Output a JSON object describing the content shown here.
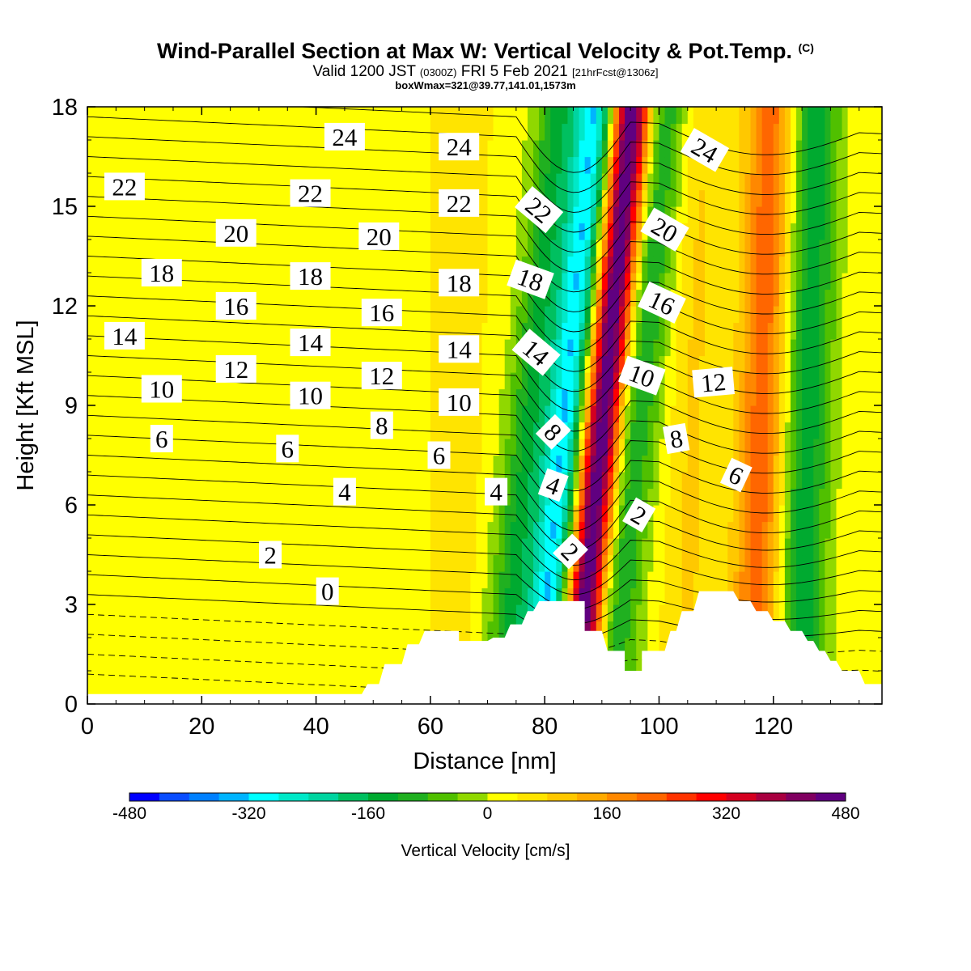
{
  "header": {
    "title_main": "Wind-Parallel Section at Max W: Vertical Velocity & Pot.Temp.",
    "title_mark": "(C)",
    "valid_prefix": "Valid 1200 JST",
    "valid_utc": "(0300Z)",
    "valid_date": "FRI 5 Feb 2021",
    "valid_fcst": "[21hrFcst@1306z]",
    "box_info": "boxWmax=321@39.77,141.01,1573m"
  },
  "chart_data": {
    "type": "heatmap",
    "xlabel": "Distance [nm]",
    "ylabel": "Height [Kft MSL]",
    "xlim": [
      0,
      139
    ],
    "ylim": [
      0,
      18
    ],
    "x_ticks": [
      0,
      20,
      40,
      60,
      80,
      100,
      120
    ],
    "y_ticks": [
      0,
      3,
      6,
      9,
      12,
      15,
      18
    ],
    "colorbar": {
      "label": "Vertical Velocity [cm/s]",
      "min": -480,
      "max": 480,
      "step": 40,
      "tick_values": [
        -480,
        -320,
        -160,
        0,
        160,
        320,
        480
      ],
      "tick_labels": [
        "-480",
        "-320",
        "-160",
        "0",
        "160",
        "320",
        "480"
      ],
      "colors": [
        "#0000ff",
        "#0a4dff",
        "#0080ff",
        "#00b4ff",
        "#00ffff",
        "#00e8c8",
        "#00d4a0",
        "#00c060",
        "#00aa30",
        "#20b020",
        "#50c000",
        "#90d800",
        "#ffff00",
        "#ffe400",
        "#ffc800",
        "#ffaa00",
        "#ff8800",
        "#ff6600",
        "#ff3300",
        "#ff0000",
        "#d40020",
        "#a80040",
        "#800060",
        "#600080"
      ]
    },
    "vertical_velocity_peaks": [
      {
        "x": 90.5,
        "value": 480
      },
      {
        "x": 84,
        "value": -330
      },
      {
        "x": 78,
        "value": -160
      },
      {
        "x": 96,
        "value": -150
      },
      {
        "x": 106,
        "value": 60
      },
      {
        "x": 118,
        "value": 200
      },
      {
        "x": 126,
        "value": -170
      },
      {
        "x": 65,
        "value": 40
      },
      {
        "x": 55,
        "value": 40
      }
    ],
    "contour_labels": [
      {
        "text": "24",
        "x": 45,
        "y": 17.1,
        "angle": 0
      },
      {
        "text": "24",
        "x": 65,
        "y": 16.8,
        "angle": 0
      },
      {
        "text": "24",
        "x": 108,
        "y": 16.7,
        "angle": 30
      },
      {
        "text": "22",
        "x": 6.5,
        "y": 15.6,
        "angle": 0
      },
      {
        "text": "22",
        "x": 39,
        "y": 15.4,
        "angle": 0
      },
      {
        "text": "22",
        "x": 65,
        "y": 15.1,
        "angle": 0
      },
      {
        "text": "22",
        "x": 79,
        "y": 14.9,
        "angle": 40
      },
      {
        "text": "20",
        "x": 26,
        "y": 14.2,
        "angle": 0
      },
      {
        "text": "20",
        "x": 51,
        "y": 14.1,
        "angle": 0
      },
      {
        "text": "20",
        "x": 101,
        "y": 14.3,
        "angle": 30
      },
      {
        "text": "18",
        "x": 13,
        "y": 13.0,
        "angle": 0
      },
      {
        "text": "18",
        "x": 39,
        "y": 12.9,
        "angle": 0
      },
      {
        "text": "18",
        "x": 65,
        "y": 12.7,
        "angle": 0
      },
      {
        "text": "18",
        "x": 77.5,
        "y": 12.8,
        "angle": 20
      },
      {
        "text": "16",
        "x": 26,
        "y": 12.0,
        "angle": 0
      },
      {
        "text": "16",
        "x": 51.5,
        "y": 11.8,
        "angle": 0
      },
      {
        "text": "16",
        "x": 100.5,
        "y": 12.1,
        "angle": 25
      },
      {
        "text": "14",
        "x": 6.5,
        "y": 11.1,
        "angle": 0
      },
      {
        "text": "14",
        "x": 39,
        "y": 10.9,
        "angle": 0
      },
      {
        "text": "14",
        "x": 65,
        "y": 10.7,
        "angle": 0
      },
      {
        "text": "14",
        "x": 78.5,
        "y": 10.6,
        "angle": 40
      },
      {
        "text": "12",
        "x": 26,
        "y": 10.1,
        "angle": 0
      },
      {
        "text": "12",
        "x": 51.5,
        "y": 9.9,
        "angle": 0
      },
      {
        "text": "12",
        "x": 109.5,
        "y": 9.7,
        "angle": -5
      },
      {
        "text": "10",
        "x": 13,
        "y": 9.5,
        "angle": 0
      },
      {
        "text": "10",
        "x": 39,
        "y": 9.3,
        "angle": 0
      },
      {
        "text": "10",
        "x": 65,
        "y": 9.1,
        "angle": 0
      },
      {
        "text": "10",
        "x": 97,
        "y": 9.9,
        "angle": 20
      },
      {
        "text": "8",
        "x": 51.5,
        "y": 8.4,
        "angle": 0
      },
      {
        "text": "8",
        "x": 81.5,
        "y": 8.2,
        "angle": 45
      },
      {
        "text": "8",
        "x": 103,
        "y": 8.0,
        "angle": -10
      },
      {
        "text": "6",
        "x": 13,
        "y": 8.0,
        "angle": 0
      },
      {
        "text": "6",
        "x": 35,
        "y": 7.7,
        "angle": 0
      },
      {
        "text": "6",
        "x": 61.5,
        "y": 7.5,
        "angle": 0
      },
      {
        "text": "6",
        "x": 113.5,
        "y": 6.9,
        "angle": 25
      },
      {
        "text": "4",
        "x": 45,
        "y": 6.4,
        "angle": 0
      },
      {
        "text": "4",
        "x": 71.5,
        "y": 6.4,
        "angle": 0
      },
      {
        "text": "4",
        "x": 81.5,
        "y": 6.6,
        "angle": 20
      },
      {
        "text": "2",
        "x": 32,
        "y": 4.5,
        "angle": 0
      },
      {
        "text": "2",
        "x": 84.5,
        "y": 4.6,
        "angle": 45
      },
      {
        "text": "2",
        "x": 96.5,
        "y": 5.7,
        "angle": 30
      },
      {
        "text": "0",
        "x": 42,
        "y": 3.4,
        "angle": 0
      }
    ],
    "terrain_height_kft": [
      {
        "x": 0,
        "h": 0.3
      },
      {
        "x": 48,
        "h": 0.3
      },
      {
        "x": 49,
        "h": 0.6
      },
      {
        "x": 51,
        "h": 0.6
      },
      {
        "x": 52,
        "h": 1.2
      },
      {
        "x": 55,
        "h": 1.2
      },
      {
        "x": 56,
        "h": 1.8
      },
      {
        "x": 58,
        "h": 1.8
      },
      {
        "x": 59,
        "h": 2.2
      },
      {
        "x": 65,
        "h": 2.2
      },
      {
        "x": 65,
        "h": 1.9
      },
      {
        "x": 70,
        "h": 1.9
      },
      {
        "x": 71,
        "h": 2.0
      },
      {
        "x": 73,
        "h": 2.0
      },
      {
        "x": 74,
        "h": 2.4
      },
      {
        "x": 76,
        "h": 2.4
      },
      {
        "x": 77,
        "h": 2.8
      },
      {
        "x": 78,
        "h": 2.8
      },
      {
        "x": 79,
        "h": 3.1
      },
      {
        "x": 87,
        "h": 3.1
      },
      {
        "x": 87,
        "h": 2.2
      },
      {
        "x": 90,
        "h": 2.2
      },
      {
        "x": 91,
        "h": 1.6
      },
      {
        "x": 94,
        "h": 1.6
      },
      {
        "x": 94,
        "h": 1.0
      },
      {
        "x": 97,
        "h": 1.0
      },
      {
        "x": 97,
        "h": 1.6
      },
      {
        "x": 101,
        "h": 1.6
      },
      {
        "x": 102,
        "h": 2.2
      },
      {
        "x": 103,
        "h": 2.2
      },
      {
        "x": 104,
        "h": 2.8
      },
      {
        "x": 106,
        "h": 2.8
      },
      {
        "x": 107,
        "h": 3.4
      },
      {
        "x": 113,
        "h": 3.4
      },
      {
        "x": 114,
        "h": 3.1
      },
      {
        "x": 116,
        "h": 3.1
      },
      {
        "x": 117,
        "h": 2.8
      },
      {
        "x": 119,
        "h": 2.8
      },
      {
        "x": 120,
        "h": 2.5
      },
      {
        "x": 122,
        "h": 2.5
      },
      {
        "x": 123,
        "h": 2.2
      },
      {
        "x": 125,
        "h": 2.2
      },
      {
        "x": 126,
        "h": 1.9
      },
      {
        "x": 127,
        "h": 1.9
      },
      {
        "x": 128,
        "h": 1.6
      },
      {
        "x": 129,
        "h": 1.6
      },
      {
        "x": 130,
        "h": 1.3
      },
      {
        "x": 131,
        "h": 1.3
      },
      {
        "x": 132,
        "h": 1.0
      },
      {
        "x": 135,
        "h": 1.0
      },
      {
        "x": 136,
        "h": 0.6
      },
      {
        "x": 139,
        "h": 0.6
      }
    ]
  }
}
